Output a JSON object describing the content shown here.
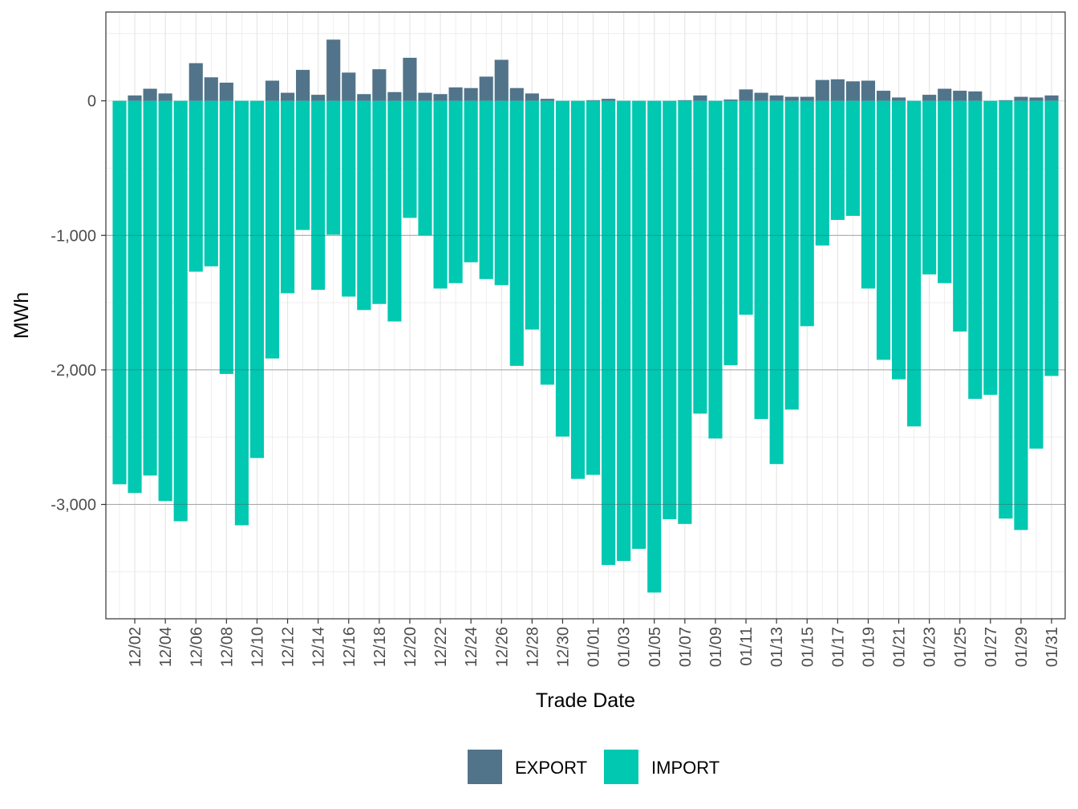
{
  "chart_data": {
    "type": "bar",
    "title": "",
    "xlabel": "Trade Date",
    "ylabel": "MWh",
    "ylim": [
      -3850,
      660
    ],
    "y_ticks": [
      0,
      -1000,
      -2000,
      -3000
    ],
    "y_tick_labels": [
      "0",
      "-1,000",
      "-2,000",
      "-3,000"
    ],
    "x_tick_labels": [
      "12/02",
      "12/04",
      "12/06",
      "12/08",
      "12/10",
      "12/12",
      "12/14",
      "12/16",
      "12/18",
      "12/20",
      "12/22",
      "12/24",
      "12/26",
      "12/28",
      "12/30",
      "01/01",
      "01/03",
      "01/05",
      "01/07",
      "01/09",
      "01/11",
      "01/13",
      "01/15",
      "01/17",
      "01/19",
      "01/21",
      "01/23",
      "01/25",
      "01/27",
      "01/29",
      "01/31"
    ],
    "x_tick_indices": [
      1,
      3,
      5,
      7,
      9,
      11,
      13,
      15,
      17,
      19,
      21,
      23,
      25,
      27,
      29,
      31,
      33,
      35,
      37,
      39,
      41,
      43,
      45,
      47,
      49,
      51,
      53,
      55,
      57,
      59,
      61
    ],
    "categories": [
      "12/01",
      "12/02",
      "12/03",
      "12/04",
      "12/05",
      "12/06",
      "12/07",
      "12/08",
      "12/09",
      "12/10",
      "12/11",
      "12/12",
      "12/13",
      "12/14",
      "12/15",
      "12/16",
      "12/17",
      "12/18",
      "12/19",
      "12/20",
      "12/21",
      "12/22",
      "12/23",
      "12/24",
      "12/25",
      "12/26",
      "12/27",
      "12/28",
      "12/29",
      "12/30",
      "12/31",
      "01/01",
      "01/02",
      "01/03",
      "01/04",
      "01/05",
      "01/06",
      "01/07",
      "01/08",
      "01/09",
      "01/10",
      "01/11",
      "01/12",
      "01/13",
      "01/14",
      "01/15",
      "01/16",
      "01/17",
      "01/18",
      "01/19",
      "01/20",
      "01/21",
      "01/22",
      "01/23",
      "01/24",
      "01/25",
      "01/26",
      "01/27",
      "01/28",
      "01/29",
      "01/30",
      "01/31"
    ],
    "series": [
      {
        "name": "EXPORT",
        "color": "#51748a",
        "values": [
          0,
          40,
          90,
          55,
          0,
          280,
          175,
          135,
          0,
          0,
          150,
          60,
          230,
          45,
          455,
          210,
          50,
          235,
          65,
          320,
          60,
          50,
          100,
          95,
          180,
          305,
          95,
          55,
          15,
          0,
          0,
          5,
          15,
          0,
          0,
          0,
          0,
          5,
          40,
          0,
          10,
          85,
          60,
          40,
          30,
          30,
          155,
          160,
          145,
          150,
          75,
          25,
          0,
          45,
          90,
          75,
          70,
          0,
          5,
          30,
          25,
          40
        ]
      },
      {
        "name": "IMPORT",
        "color": "#00c8b1",
        "values": [
          -2850,
          -2915,
          -2785,
          -2975,
          -3125,
          -1270,
          -1230,
          -2030,
          -3155,
          -2655,
          -1915,
          -1430,
          -960,
          -1405,
          -995,
          -1455,
          -1555,
          -1510,
          -1640,
          -870,
          -1000,
          -1395,
          -1355,
          -1200,
          -1325,
          -1370,
          -1970,
          -1700,
          -2110,
          -2495,
          -2810,
          -2780,
          -3450,
          -3420,
          -3330,
          -3655,
          -3110,
          -3145,
          -2325,
          -2510,
          -1965,
          -1590,
          -2365,
          -2700,
          -2295,
          -1675,
          -1075,
          -885,
          -855,
          -1395,
          -1925,
          -2070,
          -2420,
          -1290,
          -1355,
          -1715,
          -2215,
          -2185,
          -3105,
          -3190,
          -2585,
          -2045
        ]
      }
    ],
    "grid": true,
    "legend_position": "bottom"
  }
}
